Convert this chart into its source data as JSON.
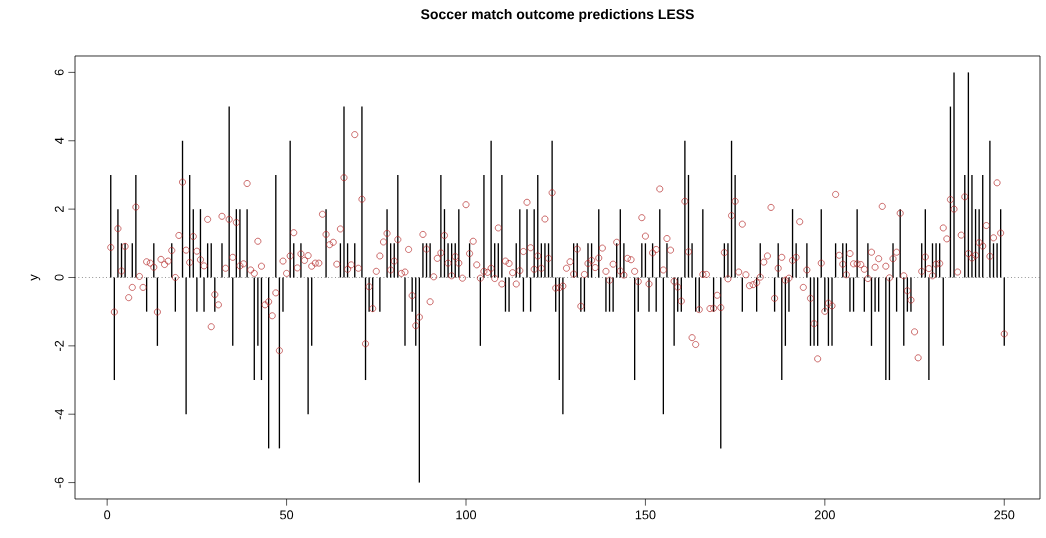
{
  "chart_data": {
    "type": "bar",
    "title": "Soccer match outcome predictions LESS",
    "ylabel": "y",
    "x": [
      1,
      2,
      3,
      4,
      5,
      6,
      7,
      8,
      9,
      10,
      11,
      12,
      13,
      14,
      15,
      16,
      17,
      18,
      19,
      20,
      21,
      22,
      23,
      24,
      25,
      26,
      27,
      28,
      29,
      30,
      31,
      32,
      33,
      34,
      35,
      36,
      37,
      38,
      39,
      40,
      41,
      42,
      43,
      44,
      45,
      46,
      47,
      48,
      49,
      50,
      51,
      52,
      53,
      54,
      55,
      56,
      57,
      58,
      59,
      60,
      61,
      62,
      63,
      64,
      65,
      66,
      67,
      68,
      69,
      70,
      71,
      72,
      73,
      74,
      75,
      76,
      77,
      78,
      79,
      80,
      81,
      82,
      83,
      84,
      85,
      86,
      87,
      88,
      89,
      90,
      91,
      92,
      93,
      94,
      95,
      96,
      97,
      98,
      99,
      100,
      101,
      102,
      103,
      104,
      105,
      106,
      107,
      108,
      109,
      110,
      111,
      112,
      113,
      114,
      115,
      116,
      117,
      118,
      119,
      120,
      121,
      122,
      123,
      124,
      125,
      126,
      127,
      128,
      129,
      130,
      131,
      132,
      133,
      134,
      135,
      136,
      137,
      138,
      139,
      140,
      141,
      142,
      143,
      144,
      145,
      146,
      147,
      148,
      149,
      150,
      151,
      152,
      153,
      154,
      155,
      156,
      157,
      158,
      159,
      160,
      161,
      162,
      163,
      164,
      165,
      166,
      167,
      168,
      169,
      170,
      171,
      172,
      173,
      174,
      175,
      176,
      177,
      178,
      179,
      180,
      181,
      182,
      183,
      184,
      185,
      186,
      187,
      188,
      189,
      190,
      191,
      192,
      193,
      194,
      195,
      196,
      197,
      198,
      199,
      200,
      201,
      202,
      203,
      204,
      205,
      206,
      207,
      208,
      209,
      210,
      211,
      212,
      213,
      214,
      215,
      216,
      217,
      218,
      219,
      220,
      221,
      222,
      223,
      224,
      225,
      226,
      227,
      228,
      229,
      230,
      231,
      232,
      233,
      234,
      235,
      236,
      237,
      238,
      239,
      240,
      241,
      242,
      243,
      244,
      245,
      246,
      247,
      248,
      249,
      250
    ],
    "series": [
      {
        "color": "#000000",
        "values": [
          3,
          -3,
          2,
          1,
          1,
          0,
          1,
          3,
          0,
          0,
          -1,
          0,
          1,
          -2,
          0,
          0,
          0,
          1,
          -1,
          0,
          4,
          -4,
          3,
          2,
          -1,
          2,
          -1,
          1,
          1,
          -1,
          0,
          1,
          0,
          5,
          -2,
          2,
          2,
          0,
          2,
          0,
          -3,
          -2,
          -3,
          0,
          -5,
          0,
          3,
          -5,
          -1,
          0,
          4,
          1,
          0,
          1,
          0,
          -4,
          -2,
          0,
          0,
          0,
          2,
          0,
          0,
          0,
          1,
          5,
          1,
          0,
          1,
          0,
          5,
          -3,
          -1,
          -1,
          0,
          -1,
          0,
          2,
          1,
          1,
          3,
          0,
          -2,
          0,
          -1,
          -2,
          -6,
          1,
          1,
          1,
          0,
          0,
          3,
          2,
          1,
          1,
          1,
          2,
          0,
          0,
          1,
          0,
          0,
          -2,
          3,
          0,
          4,
          1,
          1,
          3,
          -1,
          -1,
          0,
          1,
          2,
          -1,
          2,
          -1,
          2,
          3,
          1,
          1,
          1,
          4,
          -1,
          -3,
          -4,
          0,
          0,
          1,
          1,
          -1,
          -1,
          1,
          1,
          0,
          2,
          0,
          -1,
          -1,
          -1,
          1,
          2,
          1,
          0,
          0,
          -3,
          -1,
          1,
          1,
          -1,
          1,
          -1,
          2,
          -4,
          1,
          0,
          -2,
          -1,
          -1,
          4,
          3,
          1,
          -1,
          -1,
          2,
          0,
          0,
          -1,
          0,
          -5,
          1,
          1,
          4,
          3,
          0,
          -1,
          0,
          0,
          0,
          -1,
          1,
          0,
          0,
          0,
          -1,
          1,
          -3,
          -2,
          -1,
          2,
          1,
          0,
          0,
          1,
          -2,
          -2,
          -2,
          2,
          -1,
          -2,
          -2,
          1,
          0,
          1,
          1,
          -1,
          -1,
          2,
          0,
          -1,
          1,
          -2,
          -1,
          -1,
          0,
          -3,
          -3,
          1,
          -1,
          2,
          -2,
          -1,
          -1,
          0,
          0,
          1,
          2,
          -3,
          1,
          1,
          1,
          -2,
          0,
          5,
          6,
          0,
          0,
          3,
          6,
          3,
          2,
          2,
          3,
          0,
          4,
          1,
          1,
          2,
          -2
        ]
      },
      {
        "type": "scatter",
        "color": "#b22222",
        "values": [
          0.88,
          -1.01,
          1.43,
          0.19,
          0.91,
          -0.59,
          -0.29,
          2.06,
          0.03,
          -0.29,
          0.46,
          0.42,
          0.3,
          -1.01,
          0.53,
          0.38,
          0.48,
          0.79,
          0.0,
          1.23,
          2.79,
          0.8,
          0.44,
          1.2,
          0.77,
          0.52,
          0.34,
          1.7,
          -1.44,
          -0.5,
          -0.8,
          1.79,
          0.27,
          1.7,
          0.59,
          1.61,
          0.34,
          0.4,
          2.75,
          0.22,
          0.12,
          1.06,
          0.33,
          -0.8,
          -0.71,
          -1.12,
          -0.45,
          -2.14,
          0.48,
          0.12,
          0.63,
          1.31,
          0.28,
          0.69,
          0.5,
          0.64,
          0.33,
          0.42,
          0.42,
          1.85,
          1.26,
          0.96,
          1.03,
          0.39,
          1.42,
          2.92,
          0.24,
          0.37,
          4.18,
          0.27,
          2.29,
          -1.94,
          -0.27,
          -0.91,
          0.18,
          0.63,
          1.04,
          1.29,
          0.22,
          0.48,
          1.11,
          0.12,
          0.16,
          0.82,
          -0.53,
          -1.41,
          -1.16,
          1.26,
          0.83,
          -0.71,
          0.02,
          0.56,
          0.72,
          1.23,
          0.42,
          0.05,
          0.61,
          0.42,
          -0.02,
          2.13,
          0.7,
          1.06,
          0.37,
          -0.02,
          0.18,
          0.15,
          0.27,
          -0.03,
          1.45,
          -0.19,
          0.48,
          0.41,
          0.14,
          -0.19,
          0.2,
          0.76,
          2.2,
          0.87,
          0.24,
          0.63,
          0.27,
          1.71,
          0.56,
          2.48,
          -0.31,
          -0.3,
          -0.25,
          0.27,
          0.46,
          0.1,
          0.83,
          -0.84,
          0.09,
          0.41,
          0.5,
          0.29,
          0.57,
          0.86,
          0.18,
          -0.08,
          0.39,
          1.03,
          0.19,
          0.07,
          0.56,
          0.52,
          0.18,
          -0.12,
          1.75,
          1.21,
          -0.19,
          0.72,
          0.82,
          2.59,
          0.22,
          1.14,
          0.8,
          -0.11,
          -0.28,
          -0.69,
          2.23,
          0.75,
          -1.76,
          -1.96,
          -0.94,
          0.09,
          0.09,
          -0.91,
          -0.9,
          -0.52,
          -0.88,
          0.73,
          -0.04,
          1.81,
          2.23,
          0.16,
          1.56,
          0.08,
          -0.24,
          -0.21,
          -0.15,
          0.01,
          0.45,
          0.63,
          2.05,
          -0.61,
          0.27,
          0.59,
          -0.08,
          -0.02,
          0.5,
          0.59,
          1.63,
          -0.29,
          0.22,
          -0.61,
          -1.35,
          -2.38,
          0.42,
          -0.99,
          -0.75,
          -0.83,
          2.43,
          0.65,
          0.39,
          0.08,
          0.7,
          0.4,
          0.4,
          0.38,
          0.24,
          -0.03,
          0.74,
          0.3,
          0.55,
          2.08,
          0.33,
          -0.01,
          0.55,
          0.74,
          1.88,
          0.05,
          -0.39,
          -0.66,
          -1.59,
          -2.35,
          0.18,
          0.6,
          0.26,
          0.05,
          0.39,
          0.41,
          1.45,
          1.13,
          2.28,
          2.0,
          0.16,
          1.24,
          2.36,
          0.7,
          0.57,
          0.65,
          1.02,
          0.92,
          1.52,
          0.62,
          1.16,
          2.77,
          1.3,
          -1.65
        ]
      }
    ],
    "marker": "circle",
    "xlim": [
      -8.96,
      259.96
    ],
    "xticks": [
      0,
      50,
      100,
      150,
      200,
      250
    ],
    "ylim": [
      -6.48,
      6.48
    ],
    "yticks": [
      -6,
      -4,
      -2,
      0,
      2,
      4,
      6
    ],
    "ref_lines": [
      {
        "axis": "y",
        "value": 0,
        "color": "#555555",
        "line_style": "dotted"
      }
    ]
  }
}
